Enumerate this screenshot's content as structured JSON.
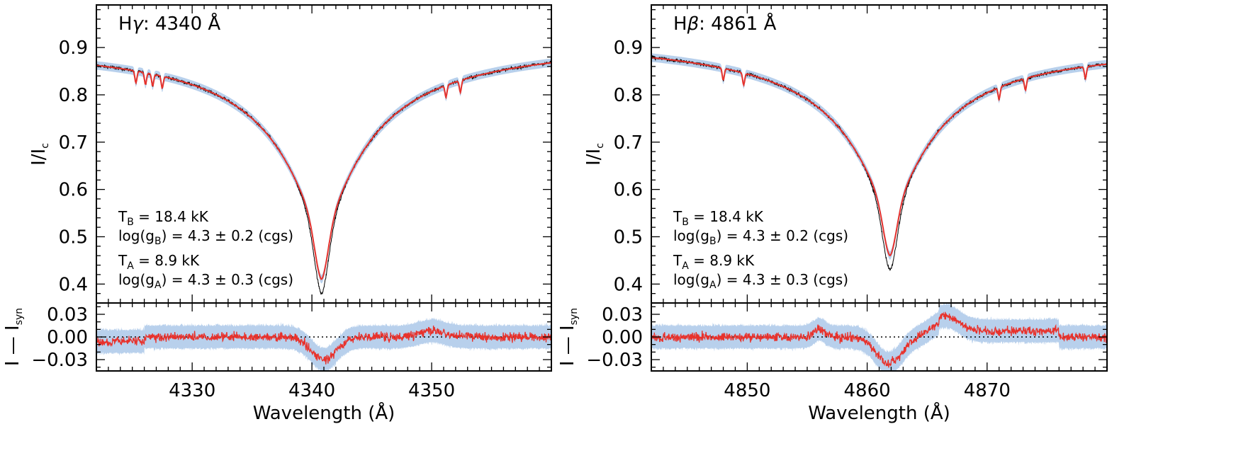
{
  "chart_data": [
    {
      "type": "line",
      "title_prefix": "H",
      "title_greek": "γ",
      "title_suffix": ": 4340 Å",
      "xlabel": "Wavelength (Å)",
      "ylabel_main": "I",
      "ylabel_sub": "c",
      "ylabel_resid_a": "I",
      "ylabel_resid_b": "—",
      "ylabel_resid_c": "I",
      "ylabel_resid_sub": "syn",
      "xlim": [
        4322,
        4360
      ],
      "ylim_main": [
        0.36,
        0.99
      ],
      "ylim_resid": [
        -0.045,
        0.045
      ],
      "xticks": [
        4330,
        4340,
        4350
      ],
      "xtick_labels": [
        "4330",
        "4340",
        "4350"
      ],
      "yticks_main": [
        0.4,
        0.5,
        0.6,
        0.7,
        0.8,
        0.9
      ],
      "ytick_labels_main": [
        "0.4",
        "0.5",
        "0.6",
        "0.7",
        "0.8",
        "0.9"
      ],
      "yticks_resid": [
        -0.03,
        0.0,
        0.03
      ],
      "ytick_labels_resid": [
        "−0.03",
        "0.00",
        "0.03"
      ],
      "line_center": 4340.8,
      "core_observed": 0.38,
      "core_model": 0.41,
      "continuum_left": 0.91,
      "continuum_right": 0.915,
      "metal_lines": [
        4325.3,
        4326.1,
        4326.7,
        4327.5,
        4351.2,
        4352.4
      ],
      "resid_dip_center": 4341.0,
      "resid_dip_depth": -0.03,
      "params": {
        "tb_label": "T",
        "tb_sub": "B",
        "tb_value": "= 18.4 kK",
        "gb_label": "log(g",
        "gb_sub": "B",
        "gb_value": ") = 4.3 ± 0.2 (cgs)",
        "ta_label": "T",
        "ta_sub": "A",
        "ta_value": "= 8.9 kK",
        "ga_label": "log(g",
        "ga_sub": "A",
        "ga_value": ") = 4.3 ± 0.3 (cgs)"
      },
      "colors": {
        "model": "#e8322c",
        "observed": "#000000",
        "band": "#b8d0ec"
      }
    },
    {
      "type": "line",
      "title_prefix": "H",
      "title_greek": "β",
      "title_suffix": ": 4861 Å",
      "xlabel": "Wavelength (Å)",
      "ylabel_main": "I",
      "ylabel_sub": "c",
      "ylabel_resid_a": "I",
      "ylabel_resid_b": "—",
      "ylabel_resid_c": "I",
      "ylabel_resid_sub": "syn",
      "xlim": [
        4842,
        4880
      ],
      "ylim_main": [
        0.36,
        0.99
      ],
      "ylim_resid": [
        -0.045,
        0.045
      ],
      "xticks": [
        4850,
        4860,
        4870
      ],
      "xtick_labels": [
        "4850",
        "4860",
        "4870"
      ],
      "yticks_main": [
        0.4,
        0.5,
        0.6,
        0.7,
        0.8,
        0.9
      ],
      "ytick_labels_main": [
        "0.4",
        "0.5",
        "0.6",
        "0.7",
        "0.8",
        "0.9"
      ],
      "yticks_resid": [
        -0.03,
        0.0,
        0.03
      ],
      "ytick_labels_resid": [
        "−0.03",
        "0.00",
        "0.03"
      ],
      "line_center": 4861.9,
      "core_observed": 0.43,
      "core_model": 0.46,
      "continuum_left": 0.92,
      "continuum_right": 0.91,
      "metal_lines": [
        4848.0,
        4849.7,
        4871.0,
        4873.2,
        4878.2
      ],
      "resid_dip_center": 4861.8,
      "resid_dip_depth": -0.035,
      "params": {
        "tb_label": "T",
        "tb_sub": "B",
        "tb_value": "= 18.4 kK",
        "gb_label": "log(g",
        "gb_sub": "B",
        "gb_value": ") = 4.3 ± 0.2 (cgs)",
        "ta_label": "T",
        "ta_sub": "A",
        "ta_value": "= 8.9 kK",
        "ga_label": "log(g",
        "ga_sub": "A",
        "ga_value": ") = 4.3 ± 0.3 (cgs)"
      },
      "colors": {
        "model": "#e8322c",
        "observed": "#000000",
        "band": "#b8d0ec"
      }
    }
  ]
}
